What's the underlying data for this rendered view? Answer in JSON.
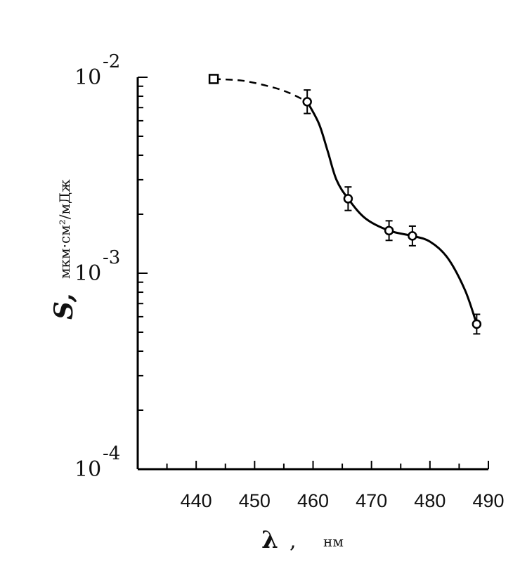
{
  "chart_data": {
    "type": "scatter",
    "xlabel": "λ",
    "xlabel_unit": "нм",
    "ylabel": "S,",
    "ylabel_unit": "мкм·см²/мДж",
    "x_ticks": [
      "440",
      "450",
      "460",
      "470",
      "480",
      "490"
    ],
    "y_ticks": [
      {
        "base": "10",
        "exp": "-2"
      },
      {
        "base": "10",
        "exp": "-3"
      },
      {
        "base": "10",
        "exp": "-4"
      }
    ],
    "y_scale": "log",
    "xlim": [
      430,
      490
    ],
    "ylim": [
      0.0001,
      0.01
    ],
    "grid": false,
    "series": [
      {
        "points": [
          {
            "x": 443,
            "y": 0.0098,
            "marker": "square",
            "err": 0
          },
          {
            "x": 459,
            "y": 0.0075,
            "marker": "circle",
            "err": 0.12
          },
          {
            "x": 466,
            "y": 0.0024,
            "marker": "circle",
            "err": 0.12
          },
          {
            "x": 473,
            "y": 0.00165,
            "marker": "circle",
            "err": 0.1
          },
          {
            "x": 477,
            "y": 0.00155,
            "marker": "circle",
            "err": 0.1
          },
          {
            "x": 488,
            "y": 0.00055,
            "marker": "circle",
            "err": 0.1
          }
        ],
        "fit_curve": [
          {
            "x": 443,
            "y": 0.0098
          },
          {
            "x": 448,
            "y": 0.0096
          },
          {
            "x": 453,
            "y": 0.0089
          },
          {
            "x": 456,
            "y": 0.0083
          },
          {
            "x": 459,
            "y": 0.0075
          },
          {
            "x": 461,
            "y": 0.0058
          },
          {
            "x": 462.5,
            "y": 0.0042
          },
          {
            "x": 464,
            "y": 0.003
          },
          {
            "x": 466,
            "y": 0.0024
          },
          {
            "x": 469,
            "y": 0.0019
          },
          {
            "x": 473,
            "y": 0.00165
          },
          {
            "x": 477,
            "y": 0.00155
          },
          {
            "x": 480,
            "y": 0.00145
          },
          {
            "x": 483,
            "y": 0.0012
          },
          {
            "x": 486,
            "y": 0.00082
          },
          {
            "x": 488,
            "y": 0.00055
          }
        ],
        "dashed_until_x": 459
      }
    ]
  }
}
